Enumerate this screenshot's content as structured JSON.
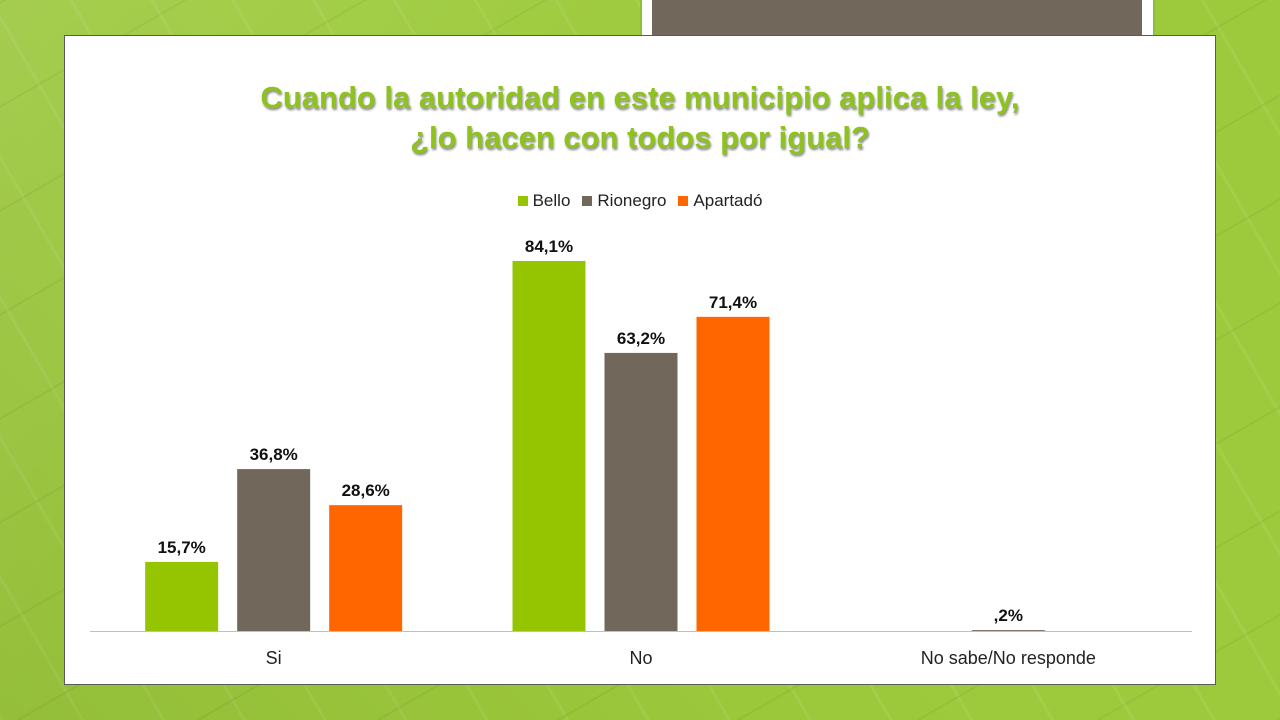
{
  "slide": {
    "title_line1": "Cuando la autoridad en este municipio aplica la ley,",
    "title_line2": "¿lo hacen con todos por igual?"
  },
  "colors": {
    "background": "#9dca3c",
    "accent_dark": "#71675a",
    "title": "#8dc21f"
  },
  "chart_data": {
    "type": "bar",
    "categories": [
      "Si",
      "No",
      "No sabe/No responde"
    ],
    "series": [
      {
        "name": "Bello",
        "color": "#95c500",
        "values": [
          15.7,
          84.1,
          null
        ],
        "labels": [
          "15,7%",
          "84,1%",
          ""
        ]
      },
      {
        "name": "Rionegro",
        "color": "#71675a",
        "values": [
          36.8,
          63.2,
          0.2
        ],
        "labels": [
          "36,8%",
          "63,2%",
          ",2%"
        ]
      },
      {
        "name": "Apartadó",
        "color": "#ff6600",
        "values": [
          28.6,
          71.4,
          null
        ],
        "labels": [
          "28,6%",
          "71,4%",
          ""
        ]
      }
    ],
    "ylim": [
      0,
      100
    ],
    "legend_position": "top",
    "grid": false
  }
}
